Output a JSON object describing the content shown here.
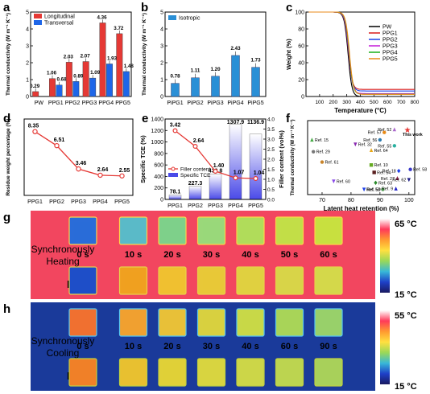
{
  "panels": {
    "a": "a",
    "b": "b",
    "c": "c",
    "d": "d",
    "e": "e",
    "f": "f",
    "g": "g",
    "h": "h"
  },
  "chart_data": [
    {
      "id": "a",
      "type": "bar",
      "ylabel": "Thermal conductivity (W m⁻¹ K⁻¹)",
      "xlabel": "",
      "categories": [
        "PW",
        "PPG1",
        "PPG2",
        "PPG3",
        "PPG4",
        "PPG5"
      ],
      "ylim": [
        0,
        5
      ],
      "yticks": [
        0,
        1,
        2,
        3,
        4,
        5
      ],
      "legend_position": "top-left",
      "colors": {
        "Longitudinal": "#e53935",
        "Transversal": "#1e66e8"
      },
      "series": [
        {
          "name": "Longitudinal",
          "values": [
            0.29,
            1.06,
            2.03,
            2.07,
            4.36,
            3.72
          ],
          "labels": [
            "0.29",
            "1.06",
            "2.03",
            "2.07",
            "4.36",
            "3.72"
          ]
        },
        {
          "name": "Transversal",
          "values": [
            null,
            0.68,
            0.89,
            1.09,
            1.93,
            1.48
          ],
          "labels": [
            "",
            "0.68",
            "0.89",
            "1.09",
            "1.93",
            "1.48"
          ]
        }
      ]
    },
    {
      "id": "b",
      "type": "bar",
      "ylabel": "Thermal conductivity (W m⁻¹ K⁻¹)",
      "xlabel": "",
      "categories": [
        "PiPG1",
        "PiPG2",
        "PiPG3",
        "PiPG4",
        "PiPG5"
      ],
      "ylim": [
        0,
        5
      ],
      "yticks": [
        0,
        1,
        2,
        3,
        4,
        5
      ],
      "legend_position": "top-left",
      "series": [
        {
          "name": "Isotropic",
          "color": "#2a8fd6",
          "values": [
            0.78,
            1.11,
            1.2,
            2.43,
            1.73
          ],
          "labels": [
            "0.78",
            "1.11",
            "1.20",
            "2.43",
            "1.73"
          ]
        }
      ]
    },
    {
      "id": "c",
      "type": "line",
      "ylabel": "Weight (%)",
      "xlabel": "Temperature (°C)",
      "xlim": [
        0,
        800
      ],
      "ylim": [
        0,
        100
      ],
      "xticks": [
        100,
        200,
        300,
        400,
        500,
        600,
        700,
        800
      ],
      "yticks": [
        0,
        20,
        40,
        60,
        80,
        100
      ],
      "legend_position": "top-right",
      "series": [
        {
          "name": "PW",
          "color": "#000000",
          "residue": 0
        },
        {
          "name": "PPG1",
          "color": "#d81b1b",
          "residue": 8.35
        },
        {
          "name": "PPG2",
          "color": "#1e40e8",
          "residue": 6.51
        },
        {
          "name": "PPG3",
          "color": "#c21bd8",
          "residue": 3.46
        },
        {
          "name": "PPG4",
          "color": "#18b018",
          "residue": 2.64
        },
        {
          "name": "PPG5",
          "color": "#e88a18",
          "residue": 2.55
        }
      ]
    },
    {
      "id": "d",
      "type": "line",
      "ylabel": "Residue weight percentage (%)",
      "xlabel": "",
      "categories": [
        "PPG1",
        "PPG2",
        "PPG3",
        "PPG4",
        "PPG5"
      ],
      "ylim": [
        0,
        10
      ],
      "yticks": [
        0,
        2,
        4,
        6,
        8,
        10
      ],
      "series": [
        {
          "name": "",
          "color": "#e53935",
          "values": [
            8.35,
            6.51,
            3.46,
            2.64,
            2.55
          ],
          "labels": [
            "8.35",
            "6.51",
            "3.46",
            "2.64",
            "2.55"
          ]
        }
      ]
    },
    {
      "id": "e",
      "type": "bar",
      "ylabel": "Specific TCE (%)",
      "y2label": "Filler content (vol%)",
      "xlabel": "",
      "categories": [
        "PPG1",
        "PPG2",
        "PPG3",
        "PPG4",
        "PPG5"
      ],
      "ylim": [
        0,
        1400
      ],
      "yticks": [
        0,
        200,
        400,
        600,
        800,
        1000,
        1200,
        1400
      ],
      "y2lim": [
        0,
        4.0
      ],
      "y2ticks": [
        "0.0",
        "0.5",
        "1.0",
        "1.5",
        "2.0",
        "2.5",
        "3.0",
        "3.5",
        "4.0"
      ],
      "legend_position": "center",
      "series": [
        {
          "name": "Specific TCE",
          "kind": "bar",
          "color": "#4a4ae8",
          "values": [
            78.1,
            227.3,
            438.8,
            1307.9,
            1136.9
          ],
          "labels": [
            "78.1",
            "227.3",
            "438.8",
            "1307.9",
            "1136.9"
          ]
        },
        {
          "name": "Filler content",
          "kind": "line",
          "axis": "right",
          "color": "#e53935",
          "values": [
            3.42,
            2.64,
            1.4,
            1.07,
            1.04
          ],
          "labels": [
            "3.42",
            "2.64",
            "1.40",
            "1.07",
            "1.04"
          ]
        }
      ]
    },
    {
      "id": "f",
      "type": "scatter",
      "ylabel": "Thermal conductivity (W m⁻¹ K⁻¹)",
      "xlabel": "Latent heat retention (%)",
      "xlim": [
        65,
        102
      ],
      "xticks": [
        70,
        80,
        90,
        100
      ],
      "ylim": [
        0,
        5
      ],
      "points": [
        {
          "label": "Ref. 15",
          "x": 66.5,
          "y": 3.7,
          "color": "#44aa44",
          "marker": "triangle"
        },
        {
          "label": "Ref. 29",
          "x": 67,
          "y": 2.9,
          "color": "#777777",
          "marker": "circle"
        },
        {
          "label": "Ref. 61",
          "x": 70,
          "y": 2.2,
          "color": "#c8842a",
          "marker": "circle"
        },
        {
          "label": "Ref. 32",
          "x": 81.5,
          "y": 3.4,
          "color": "#8a2ab0",
          "marker": "triangle-down"
        },
        {
          "label": "Ref. 57",
          "x": 91.5,
          "y": 4.2,
          "color": "#e88a18",
          "marker": "circle"
        },
        {
          "label": "Ref. 52",
          "x": 95,
          "y": 4.4,
          "color": "#aa66cc",
          "marker": "triangle"
        },
        {
          "label": "This work",
          "x": 99.5,
          "y": 4.36,
          "color": "#e53935",
          "marker": "star"
        },
        {
          "label": "Ref. 56",
          "x": 90,
          "y": 3.7,
          "color": "#2a7ab0",
          "marker": "circle"
        },
        {
          "label": "Ref. 55",
          "x": 95,
          "y": 3.3,
          "color": "#2ab0a0",
          "marker": "circle"
        },
        {
          "label": "Ref. 64",
          "x": 87,
          "y": 3.0,
          "color": "#e8a818",
          "marker": "triangle"
        },
        {
          "label": "Ref. 10",
          "x": 87,
          "y": 2.0,
          "color": "#66aa22",
          "marker": "square"
        },
        {
          "label": "Ref. 54",
          "x": 88,
          "y": 1.5,
          "color": "#5a1f1f",
          "marker": "square"
        },
        {
          "label": "Ref. 18",
          "x": 96.5,
          "y": 1.6,
          "color": "#1e40e8",
          "marker": "diamond"
        },
        {
          "label": "Ref. 58",
          "x": 100.5,
          "y": 1.7,
          "color": "#3a3acc",
          "marker": "circle"
        },
        {
          "label": "Ref. 27",
          "x": 96,
          "y": 1.1,
          "color": "#8a1f4a",
          "marker": "triangle"
        },
        {
          "label": "Ref. 62",
          "x": 100,
          "y": 1.0,
          "color": "#1e1e88",
          "marker": "triangle-down"
        },
        {
          "label": "Ref. 60",
          "x": 74,
          "y": 0.9,
          "color": "#8a4ae8",
          "marker": "triangle-down"
        },
        {
          "label": "Ref. 63",
          "x": 88.5,
          "y": 0.8,
          "color": "#2a8a2a",
          "marker": "diamond"
        },
        {
          "label": "Ref. 59",
          "x": 84.5,
          "y": 0.35,
          "color": "#1e40e8",
          "marker": "triangle-down"
        },
        {
          "label": "Ref. 53",
          "x": 91,
          "y": 0.35,
          "color": "#5aa85a",
          "marker": "circle"
        },
        {
          "label": "Ref. 9",
          "x": 95.5,
          "y": 0.4,
          "color": "#1e1ec8",
          "marker": "triangle"
        }
      ]
    }
  ],
  "thermal_images": {
    "heating": {
      "label_top": "PW",
      "label_bottom": "PPG4",
      "caption_line1": "Synchronously",
      "caption_line2": "Heating",
      "times": [
        "0 s",
        "10 s",
        "20 s",
        "30 s",
        "40 s",
        "50 s",
        "60 s"
      ],
      "scale_max": "65 °C",
      "scale_min": "15 °C",
      "background": "#f2465f",
      "top_fill": [
        "#2a6cd8",
        "#5abac8",
        "#7ed08a",
        "#9ad87a",
        "#b0dc5a",
        "#c2de48",
        "#c8e040"
      ],
      "bottom_fill": [
        "#1e4ec8",
        "#f0a020",
        "#f0c030",
        "#e8c838",
        "#e0d040",
        "#d8d448",
        "#d4d84a"
      ]
    },
    "cooling": {
      "label_top": "PW",
      "label_bottom": "PPG4",
      "caption_line1": "Synchronously",
      "caption_line2": "Cooling",
      "times": [
        "0 s",
        "10 s",
        "20 s",
        "30 s",
        "40 s",
        "60 s",
        "90 s"
      ],
      "scale_max": "55 °C",
      "scale_min": "15 °C",
      "background": "#1a3a9a",
      "top_fill": [
        "#f07030",
        "#f0a030",
        "#e8c038",
        "#d8d040",
        "#c8d848",
        "#a8d458",
        "#98d06a"
      ],
      "bottom_fill": [
        "#f08028",
        "#e8c030",
        "#e0d038",
        "#d8d440",
        "#ccd648",
        "#bcd450",
        "#a8d05a"
      ]
    }
  }
}
